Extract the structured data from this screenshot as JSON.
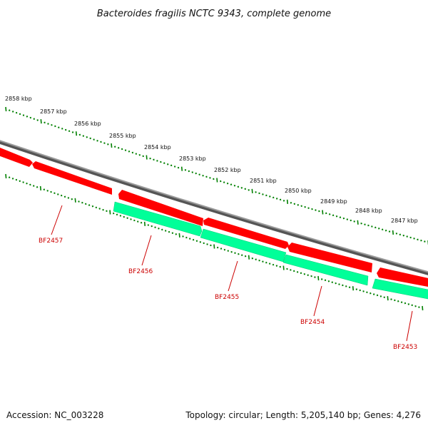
{
  "title": "Bacteroides fragilis NCTC 9343, complete genome",
  "footer": {
    "accession": "Accession: NC_003228",
    "summary": "Topology: circular; Length: 5,205,140 bp; Genes: 4,276"
  },
  "colors": {
    "forward_gene": "#ff0000",
    "reverse_gene": "#00ff99",
    "backbone": "#808080",
    "ticks": "#008000",
    "gene_label": "#cc0000"
  },
  "scale_labels": [
    "2858 kbp",
    "2857 kbp",
    "2856 kbp",
    "2855 kbp",
    "2854 kbp",
    "2853 kbp",
    "2852 kbp",
    "2851 kbp",
    "2850 kbp",
    "2849 kbp",
    "2848 kbp",
    "2847 kbp"
  ],
  "genes": [
    {
      "name": "BF2457",
      "strand": "forward"
    },
    {
      "name": "BF2456",
      "strand": "reverse"
    },
    {
      "name": "BF2455",
      "strand": "forward"
    },
    {
      "name": "BF2454",
      "strand": "reverse"
    },
    {
      "name": "BF2453",
      "strand": "forward"
    }
  ]
}
